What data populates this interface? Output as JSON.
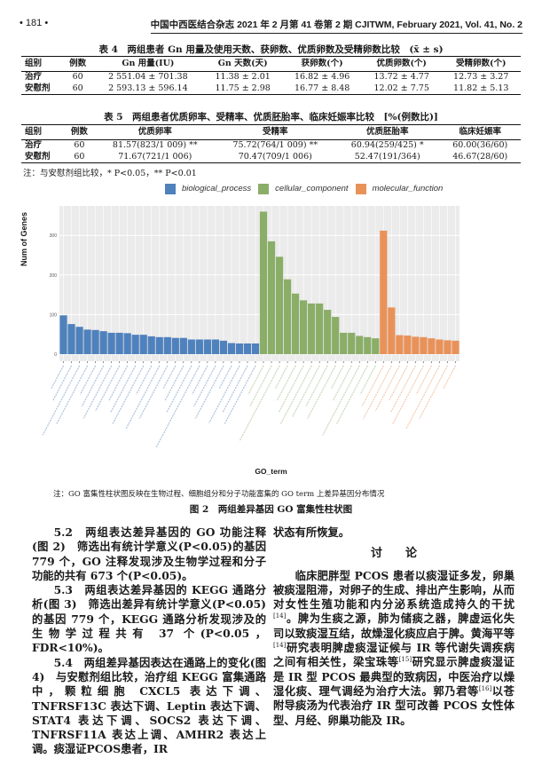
{
  "header": {
    "page": "• 181 •",
    "journal": "中国中西医结合杂志 2021 年 2 月第 41 卷第 2 期 CJITWM, February 2021, Vol. 41, No. 2"
  },
  "table4": {
    "caption": "表 4　两组患者 Gn 用量及使用天数、获卵数、优质卵数及受精卵数比较　(x̄ ± s)",
    "headers": [
      "组别",
      "例数",
      "Gn 用量(IU)",
      "Gn 天数(天)",
      "获卵数(个)",
      "优质卵数(个)",
      "受精卵数(个)"
    ],
    "rows": [
      [
        "治疗",
        "60",
        "2 551.04 ± 701.38",
        "11.38 ± 2.01",
        "16.82 ± 4.96",
        "13.72 ± 4.77",
        "12.73 ± 3.27"
      ],
      [
        "安慰剂",
        "60",
        "2 593.13 ± 596.14",
        "11.75 ± 2.98",
        "16.77 ± 8.48",
        "12.02 ± 7.75",
        "11.82 ± 5.13"
      ]
    ]
  },
  "table5": {
    "caption": "表 5　两组患者优质卵率、受精率、优质胚胎率、临床妊娠率比较　[%(例数比)]",
    "headers": [
      "组别",
      "例数",
      "优质卵率",
      "受精率",
      "优质胚胎率",
      "临床妊娠率"
    ],
    "rows": [
      [
        "治疗",
        "60",
        "81.57(823/1 009) **",
        "75.72(764/1 009) **",
        "60.94(259/425) *",
        "60.00(36/60)"
      ],
      [
        "安慰剂",
        "60",
        "71.67(721/1 006)",
        "70.47(709/1 006)",
        "52.47(191/364)",
        "46.67(28/60)"
      ]
    ],
    "note": "注：与安慰剂组比较，* P<0.05，** P<0.01"
  },
  "chart_data": {
    "type": "bar",
    "title": "",
    "xlabel": "GO_term",
    "ylabel": "Num of Genes",
    "ylim": [
      0,
      380
    ],
    "yticks": [
      0,
      100,
      200,
      300
    ],
    "grid": true,
    "legend_position": "top",
    "series": [
      {
        "name": "biological_process",
        "color": "#4f81bd",
        "values": [
          98,
          76,
          69,
          62,
          61,
          58,
          54,
          54,
          53,
          49,
          49,
          45,
          43,
          43,
          41,
          41,
          37,
          37,
          37,
          37,
          34,
          28,
          27,
          27,
          27
        ]
      },
      {
        "name": "cellular_component",
        "color": "#8aae68",
        "values": [
          360,
          285,
          246,
          189,
          153,
          136,
          128,
          128,
          112,
          94,
          54,
          54,
          46,
          43,
          40
        ]
      },
      {
        "name": "molecular_function",
        "color": "#e8925a",
        "values": [
          312,
          118,
          48,
          47,
          44,
          43,
          40,
          37,
          35,
          34
        ]
      }
    ]
  },
  "figure": {
    "note": "注：GO 富集性柱状图反映在生物过程、细胞组分和分子功能富集的 GO term 上差异基因分布情况",
    "caption": "图 2　两组差异基因 GO 富集性柱状图"
  },
  "left": [
    "5.2　两组表达差异基因的 GO 功能注释(图 2)　筛选出有统计学意义(P<0.05)的基因 779 个，GO 注释发现涉及生物学过程和分子功能的共有 673 个(P<0.05)。",
    "5.3　两组表达差异基因的 KEGG 通路分析(图 3)　筛选出差异有统计学意义(P<0.05)的基因 779 个，KEGG 通路分析发现涉及的生物学过程共有 37 个(P<0.05，FDR<10%)。",
    "5.4　两组差异基因表达在通路上的变化(图 4)　与安慰剂组比较，治疗组 KEGG 富集通路中，颗粒细胞 CXCL5 表达下调、TNFRSF13C 表达下调、Leptin 表达下调、STAT4 表达下调、SOCS2 表达下调、TNFRSF11A 表达上调、AMHR2 表达上调。痰湿证PCOS患者，IR"
  ],
  "right": {
    "cont": "状态有所恢复。",
    "section": "讨论",
    "para": "临床肥胖型 PCOS 患者以痰湿证多发，卵巢被痰湿阻滞，对卵子的生成、排出产生影响，从而对女性生殖功能和内分泌系统造成持久的干扰[14]。脾为生痰之源，肺为储痰之器，脾虚运化失司以致痰湿互结，故燥湿化痰应启于脾。黄海平等[14]研究表明脾虚痰湿证候与 IR 等代谢失调疾病之间有相关性，梁宝珠等[15]研究显示脾虚痰湿证是 IR 型 PCOS 最典型的致病因，中医治疗以燥湿化痰、理气调经为治疗大法。郭乃君等[16]以苍附导痰汤为代表治疗 IR 型可改善 PCOS 女性体型、月经、卵巢功能及 IR。"
  }
}
